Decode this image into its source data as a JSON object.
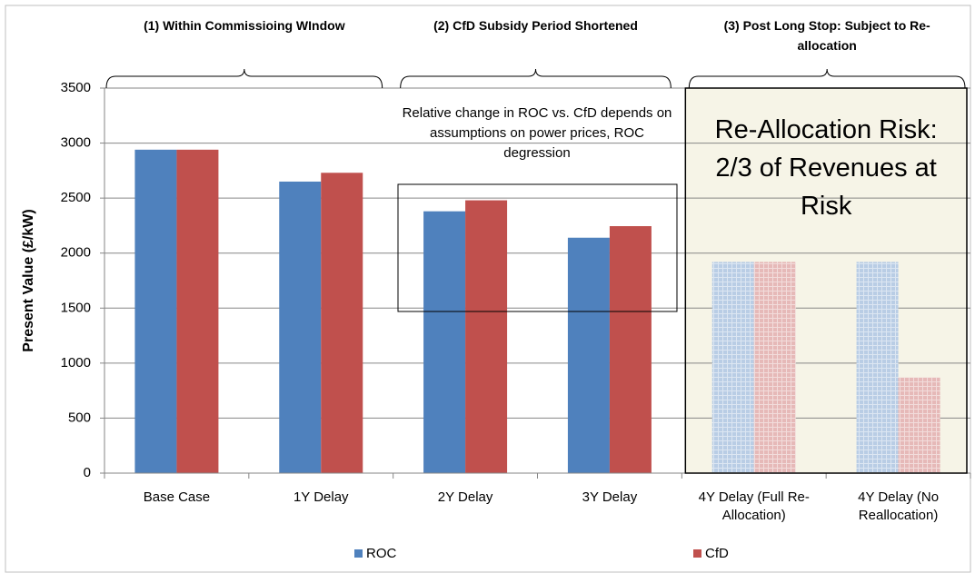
{
  "chart_data": {
    "type": "bar",
    "categories": [
      "Base Case",
      "1Y Delay",
      "2Y Delay",
      "3Y Delay",
      "4Y Delay (Full Re-Allocation)",
      "4Y Delay (No Reallocation)"
    ],
    "series": [
      {
        "name": "ROC",
        "color": "#4f81bd",
        "values": [
          2940,
          2650,
          2380,
          2140,
          1920,
          1920
        ]
      },
      {
        "name": "CfD",
        "color": "#c0504d",
        "values": [
          2940,
          2730,
          2480,
          2245,
          1920,
          870
        ]
      }
    ],
    "ylabel": "Present Value (£/kW)",
    "ylim": [
      0,
      3500
    ],
    "yticks": [
      0,
      500,
      1000,
      1500,
      2000,
      2500,
      3000,
      3500
    ],
    "grid": true,
    "legend": "bottom",
    "sections": [
      "(1) Within Commissioing WIndow",
      "(2) CfD Subsidy Period Shortened",
      "(3) Post Long Stop: Subject to Re-allocation"
    ],
    "annotations": [
      "Relative change in ROC vs. CfD depends on assumptions on power prices, ROC degression",
      "Re-Allocation Risk: 2/3 of Revenues at Risk"
    ]
  }
}
